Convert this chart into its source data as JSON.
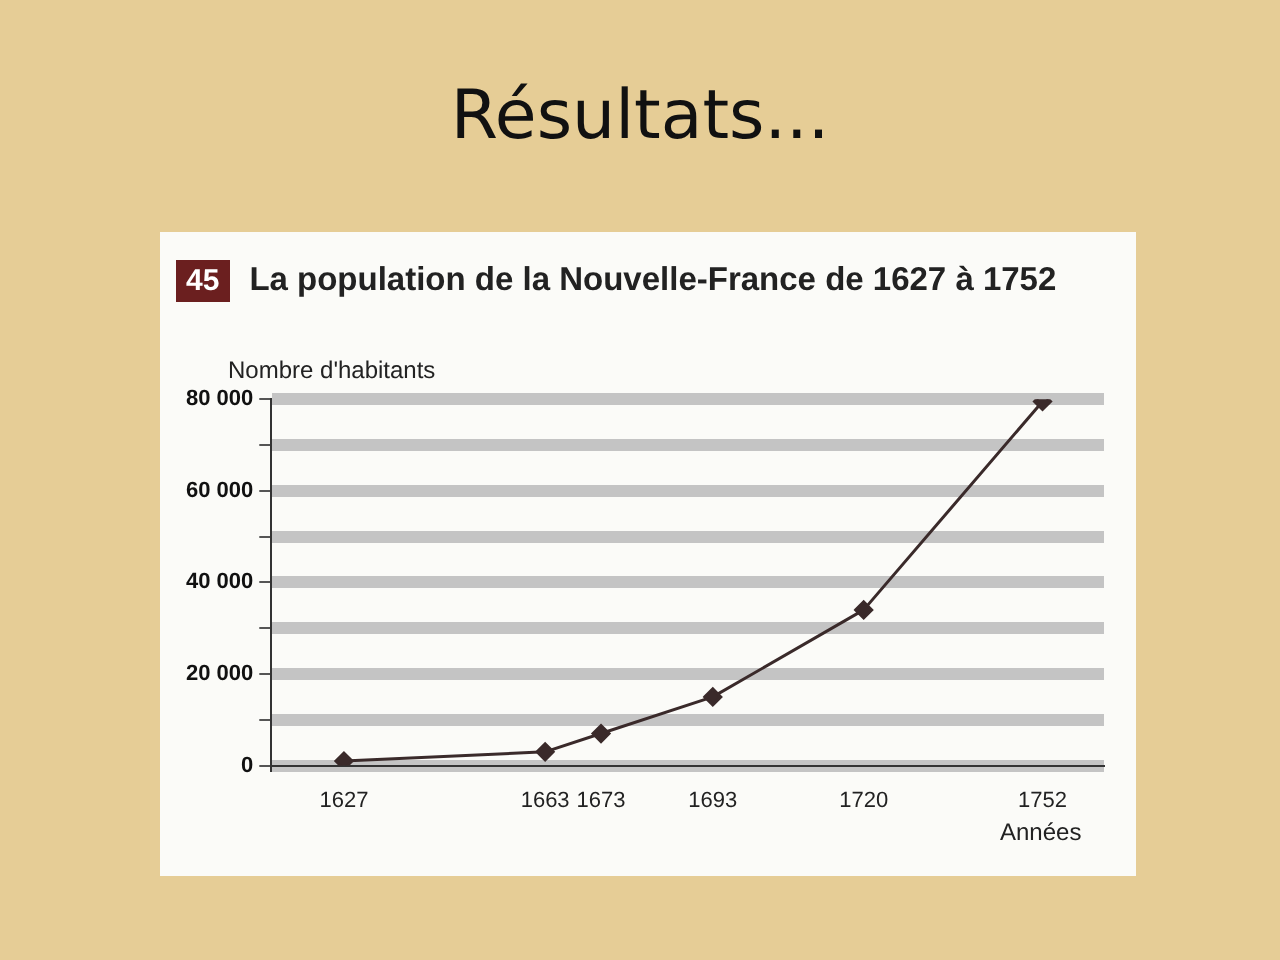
{
  "chart_data": {
    "type": "line",
    "title": "Résultats...",
    "subtitle": "La population de la Nouvelle-France de 1627 à 1752",
    "annotations": [
      "45"
    ],
    "xlabel": "Années",
    "ylabel": "Nombre d'habitants",
    "x": [
      1627,
      1663,
      1673,
      1693,
      1720,
      1752
    ],
    "series": [
      {
        "color": "#3a2a2a",
        "values": [
          1000,
          3000,
          7000,
          15000,
          34000,
          79500
        ]
      }
    ],
    "xlim": [
      1614,
      1763
    ],
    "xticks": [
      1627,
      1663,
      1673,
      1693,
      1720,
      1752
    ],
    "ylim": [
      0,
      80000
    ],
    "yticks": [
      {
        "value": 0,
        "label": "0"
      },
      {
        "value": 10000,
        "label": null
      },
      {
        "value": 20000,
        "label": "20 000"
      },
      {
        "value": 30000,
        "label": null
      },
      {
        "value": 40000,
        "label": "40 000"
      },
      {
        "value": 50000,
        "label": null
      },
      {
        "value": 60000,
        "label": "60 000"
      },
      {
        "value": 70000,
        "label": null
      },
      {
        "value": 80000,
        "label": "80 000"
      }
    ],
    "grid": "y",
    "marker": "diamond",
    "line_style": "solid",
    "legend": false
  }
}
